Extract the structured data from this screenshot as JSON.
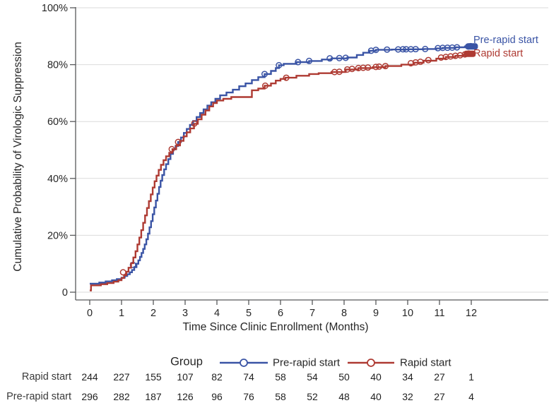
{
  "chart_data": {
    "type": "line",
    "subtype": "kaplan-meier-step-curves",
    "title": "",
    "ylabel": "Cumulative Probability of Virologic Suppression",
    "xlabel": "Time Since Clinic Enrollment (Months)",
    "xlim": [
      0,
      12
    ],
    "ylim": [
      0,
      100
    ],
    "grid": "horizontal",
    "x_ticks": [
      "0",
      "1",
      "2",
      "3",
      "4",
      "5",
      "6",
      "7",
      "8",
      "9",
      "10",
      "11",
      "12"
    ],
    "y_ticks": [
      {
        "value": 0,
        "label": "0"
      },
      {
        "value": 20,
        "label": "20%"
      },
      {
        "value": 40,
        "label": "40%"
      },
      {
        "value": 60,
        "label": "60%"
      },
      {
        "value": 80,
        "label": "80%"
      },
      {
        "value": 100,
        "label": "100%"
      }
    ],
    "colors": {
      "pre_rapid": "#3a54a5",
      "rapid": "#ae3a32",
      "axis": "#58595b",
      "gridline": "#dbdbdb",
      "text": "#262626",
      "risk_label": "#3a3a3a"
    },
    "series": [
      {
        "name": "Pre-rapid start",
        "end_label": "Pre-rapid start",
        "color": "#3a54a5",
        "points": [
          [
            0,
            3
          ],
          [
            0.3,
            3.4
          ],
          [
            0.5,
            3.8
          ],
          [
            0.7,
            4.2
          ],
          [
            0.85,
            4.6
          ],
          [
            1.0,
            5.1
          ],
          [
            1.1,
            5.7
          ],
          [
            1.18,
            6.3
          ],
          [
            1.26,
            7.0
          ],
          [
            1.33,
            7.8
          ],
          [
            1.4,
            8.8
          ],
          [
            1.47,
            10.0
          ],
          [
            1.53,
            11.2
          ],
          [
            1.58,
            12.4
          ],
          [
            1.63,
            13.8
          ],
          [
            1.68,
            15.2
          ],
          [
            1.73,
            16.8
          ],
          [
            1.78,
            18.6
          ],
          [
            1.83,
            20.6
          ],
          [
            1.88,
            22.8
          ],
          [
            1.93,
            25.0
          ],
          [
            1.98,
            27.4
          ],
          [
            2.03,
            29.8
          ],
          [
            2.08,
            32.2
          ],
          [
            2.13,
            34.6
          ],
          [
            2.18,
            37.0
          ],
          [
            2.23,
            39.2
          ],
          [
            2.28,
            41.2
          ],
          [
            2.34,
            43.2
          ],
          [
            2.4,
            45.0
          ],
          [
            2.47,
            46.8
          ],
          [
            2.54,
            48.6
          ],
          [
            2.62,
            50.2
          ],
          [
            2.7,
            51.4
          ],
          [
            2.78,
            52.8
          ],
          [
            2.87,
            54.4
          ],
          [
            2.96,
            56.0
          ],
          [
            3.05,
            57.4
          ],
          [
            3.15,
            58.8
          ],
          [
            3.25,
            60.2
          ],
          [
            3.36,
            61.6
          ],
          [
            3.47,
            63.0
          ],
          [
            3.58,
            64.3
          ],
          [
            3.7,
            65.6
          ],
          [
            3.82,
            66.8
          ],
          [
            3.95,
            68.0
          ],
          [
            4.1,
            69.2
          ],
          [
            4.3,
            70.2
          ],
          [
            4.5,
            71.2
          ],
          [
            4.7,
            72.4
          ],
          [
            4.9,
            73.4
          ],
          [
            5.1,
            74.6
          ],
          [
            5.3,
            75.6
          ],
          [
            5.5,
            76.7
          ],
          [
            5.7,
            77.8
          ],
          [
            5.85,
            78.8
          ],
          [
            5.95,
            79.8
          ],
          [
            6.1,
            80.3
          ],
          [
            6.5,
            80.9
          ],
          [
            6.9,
            81.3
          ],
          [
            7.3,
            81.8
          ],
          [
            7.6,
            82.2
          ],
          [
            8.1,
            82.5
          ],
          [
            8.4,
            83.4
          ],
          [
            8.6,
            84.2
          ],
          [
            8.8,
            84.9
          ],
          [
            9.0,
            85.2
          ],
          [
            9.5,
            85.3
          ],
          [
            10.0,
            85.4
          ],
          [
            10.5,
            85.5
          ],
          [
            10.9,
            85.7
          ],
          [
            11.1,
            85.9
          ],
          [
            11.5,
            86.1
          ],
          [
            11.8,
            86.4
          ],
          [
            12.0,
            86.6
          ],
          [
            12.18,
            86.6
          ]
        ],
        "censors": [
          [
            1.36,
            9.6
          ],
          [
            5.5,
            76.7
          ],
          [
            5.95,
            79.8
          ],
          [
            6.55,
            80.9
          ],
          [
            6.9,
            81.3
          ],
          [
            7.55,
            82.2
          ],
          [
            7.85,
            82.3
          ],
          [
            8.05,
            82.4
          ],
          [
            8.85,
            84.9
          ],
          [
            9.0,
            85.2
          ],
          [
            9.35,
            85.3
          ],
          [
            9.7,
            85.35
          ],
          [
            9.85,
            85.4
          ],
          [
            9.95,
            85.4
          ],
          [
            10.1,
            85.4
          ],
          [
            10.25,
            85.45
          ],
          [
            10.55,
            85.5
          ],
          [
            10.95,
            85.8
          ],
          [
            11.1,
            85.9
          ],
          [
            11.25,
            85.95
          ],
          [
            11.4,
            86.0
          ],
          [
            11.55,
            86.1
          ],
          [
            11.9,
            86.4
          ],
          [
            11.98,
            86.5
          ]
        ],
        "end_cluster": [
          12.02,
          86.4
        ]
      },
      {
        "name": "Rapid start",
        "end_label": "Rapid start",
        "color": "#ae3a32",
        "points": [
          [
            0,
            0.6
          ],
          [
            0.04,
            2.4
          ],
          [
            0.35,
            2.8
          ],
          [
            0.55,
            3.2
          ],
          [
            0.75,
            3.7
          ],
          [
            0.9,
            4.2
          ],
          [
            1.0,
            5.0
          ],
          [
            1.08,
            6.0
          ],
          [
            1.15,
            7.2
          ],
          [
            1.22,
            8.6
          ],
          [
            1.3,
            10.2
          ],
          [
            1.37,
            12.2
          ],
          [
            1.44,
            14.4
          ],
          [
            1.5,
            16.8
          ],
          [
            1.56,
            19.2
          ],
          [
            1.62,
            21.8
          ],
          [
            1.68,
            24.4
          ],
          [
            1.74,
            27.0
          ],
          [
            1.8,
            29.6
          ],
          [
            1.86,
            32.0
          ],
          [
            1.92,
            34.4
          ],
          [
            1.98,
            36.8
          ],
          [
            2.04,
            39.0
          ],
          [
            2.1,
            41.0
          ],
          [
            2.17,
            43.0
          ],
          [
            2.24,
            44.8
          ],
          [
            2.32,
            46.4
          ],
          [
            2.4,
            47.8
          ],
          [
            2.5,
            49.0
          ],
          [
            2.6,
            50.3
          ],
          [
            2.72,
            51.6
          ],
          [
            2.84,
            53.2
          ],
          [
            2.95,
            54.8
          ],
          [
            3.05,
            56.2
          ],
          [
            3.16,
            57.6
          ],
          [
            3.28,
            59.2
          ],
          [
            3.4,
            60.8
          ],
          [
            3.52,
            62.4
          ],
          [
            3.64,
            63.9
          ],
          [
            3.76,
            65.3
          ],
          [
            3.88,
            66.5
          ],
          [
            4.0,
            67.4
          ],
          [
            4.2,
            68.0
          ],
          [
            4.45,
            68.6
          ],
          [
            5.1,
            71.0
          ],
          [
            5.3,
            71.6
          ],
          [
            5.5,
            72.6
          ],
          [
            5.7,
            73.4
          ],
          [
            5.85,
            74.4
          ],
          [
            6.0,
            75.0
          ],
          [
            6.15,
            75.4
          ],
          [
            6.5,
            76.1
          ],
          [
            6.9,
            76.7
          ],
          [
            7.2,
            77.0
          ],
          [
            7.6,
            77.4
          ],
          [
            8.05,
            78.3
          ],
          [
            8.45,
            78.8
          ],
          [
            8.9,
            79.1
          ],
          [
            9.3,
            79.5
          ],
          [
            9.8,
            80.0
          ],
          [
            10.2,
            80.7
          ],
          [
            10.5,
            81.4
          ],
          [
            10.9,
            82.1
          ],
          [
            11.2,
            82.7
          ],
          [
            11.5,
            83.1
          ],
          [
            11.75,
            83.5
          ],
          [
            11.95,
            84.0
          ],
          [
            12.1,
            84.0
          ]
        ],
        "censors": [
          [
            1.05,
            7.0
          ],
          [
            2.58,
            50.3
          ],
          [
            2.78,
            52.8
          ],
          [
            3.29,
            59.3
          ],
          [
            5.52,
            72.6
          ],
          [
            6.18,
            75.4
          ],
          [
            7.7,
            77.4
          ],
          [
            7.85,
            77.5
          ],
          [
            8.1,
            78.3
          ],
          [
            8.25,
            78.5
          ],
          [
            8.45,
            78.8
          ],
          [
            8.6,
            78.9
          ],
          [
            8.75,
            79.0
          ],
          [
            9.0,
            79.2
          ],
          [
            9.1,
            79.3
          ],
          [
            9.3,
            79.5
          ],
          [
            10.1,
            80.5
          ],
          [
            10.25,
            80.8
          ],
          [
            10.4,
            81.0
          ],
          [
            10.65,
            81.6
          ],
          [
            11.05,
            82.5
          ],
          [
            11.2,
            82.7
          ],
          [
            11.35,
            82.9
          ],
          [
            11.5,
            83.1
          ],
          [
            11.65,
            83.3
          ],
          [
            11.8,
            83.6
          ],
          [
            11.92,
            83.9
          ]
        ],
        "end_cluster": [
          11.95,
          83.8
        ]
      }
    ],
    "legend": {
      "title": "Group",
      "entries": [
        {
          "label": "Pre-rapid start",
          "color": "#3a54a5"
        },
        {
          "label": "Rapid start",
          "color": "#ae3a32"
        }
      ]
    },
    "risk_table": {
      "rows": [
        {
          "label": "Rapid start",
          "values": [
            "244",
            "227",
            "155",
            "107",
            "82",
            "74",
            "58",
            "54",
            "50",
            "40",
            "34",
            "27",
            "1"
          ]
        },
        {
          "label": "Pre-rapid start",
          "values": [
            "296",
            "282",
            "187",
            "126",
            "96",
            "76",
            "58",
            "52",
            "48",
            "40",
            "32",
            "27",
            "4"
          ]
        }
      ]
    }
  }
}
